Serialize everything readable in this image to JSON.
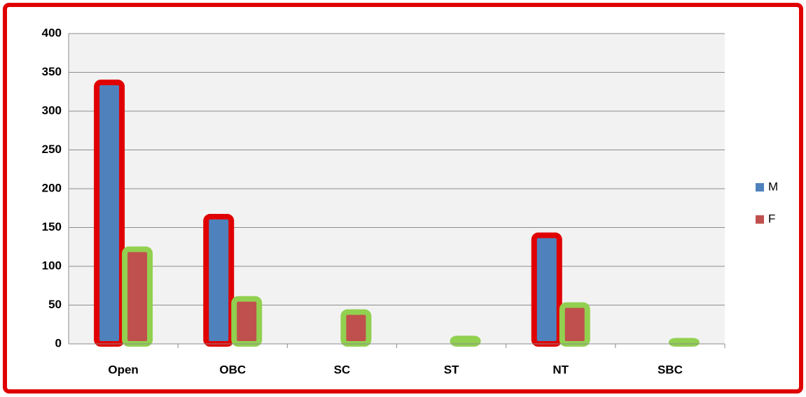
{
  "chart_data": {
    "type": "bar",
    "categories": [
      "Open",
      "OBC",
      "SC",
      "ST",
      "NT",
      "SBC"
    ],
    "series": [
      {
        "name": "M",
        "color": "#4f81bd",
        "values": [
          337,
          164,
          null,
          null,
          140,
          null
        ]
      },
      {
        "name": "F",
        "color": "#c0504d",
        "values": [
          122,
          58,
          41,
          7,
          50,
          4
        ]
      }
    ],
    "ylim": [
      0,
      400
    ],
    "yticks": [
      0,
      50,
      100,
      150,
      200,
      250,
      300,
      350,
      400
    ],
    "grid": true,
    "legend": "right"
  }
}
